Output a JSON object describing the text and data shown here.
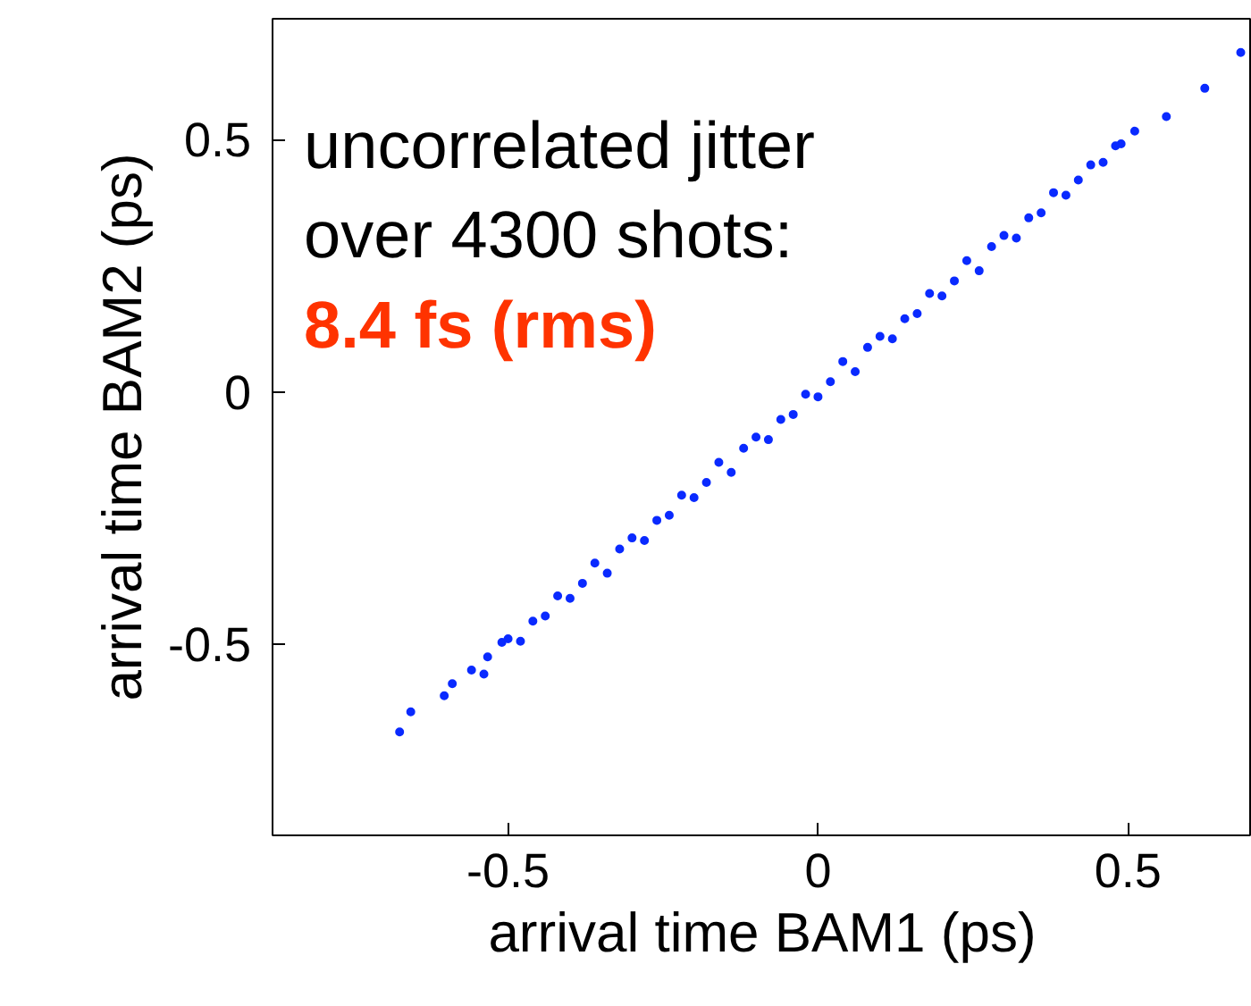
{
  "chart_data": {
    "type": "scatter",
    "xlabel": "arrival time BAM1 (ps)",
    "ylabel": "arrival time BAM2 (ps)",
    "annotations": [
      "uncorrelated jitter",
      "over 4300 shots:",
      "8.4 fs (rms)"
    ],
    "xlim": [
      -0.88,
      0.7
    ],
    "ylim": [
      -0.88,
      0.74
    ],
    "xticks": [
      -0.5,
      0,
      0.5
    ],
    "yticks": [
      -0.5,
      0,
      0.5
    ],
    "grid": false,
    "marker": "circle",
    "series": [
      {
        "color": "#0a2aff",
        "x": [
          -0.675,
          -0.657,
          -0.603,
          -0.59,
          -0.559,
          -0.539,
          -0.533,
          -0.51,
          -0.5,
          -0.48,
          -0.46,
          -0.44,
          -0.42,
          -0.4,
          -0.38,
          -0.36,
          -0.34,
          -0.32,
          -0.3,
          -0.28,
          -0.26,
          -0.24,
          -0.22,
          -0.2,
          -0.18,
          -0.16,
          -0.14,
          -0.12,
          -0.1,
          -0.08,
          -0.06,
          -0.04,
          -0.02,
          0,
          0.02,
          0.04,
          0.06,
          0.08,
          0.1,
          0.12,
          0.14,
          0.16,
          0.18,
          0.2,
          0.22,
          0.24,
          0.26,
          0.28,
          0.3,
          0.32,
          0.34,
          0.36,
          0.38,
          0.4,
          0.42,
          0.44,
          0.46,
          0.48,
          0.489,
          0.511,
          0.562,
          0.624,
          0.682
        ],
        "values": [
          -0.675,
          -0.635,
          -0.603,
          -0.579,
          -0.552,
          -0.56,
          -0.526,
          -0.497,
          -0.49,
          -0.495,
          -0.455,
          -0.445,
          -0.405,
          -0.41,
          -0.38,
          -0.34,
          -0.36,
          -0.312,
          -0.29,
          -0.295,
          -0.255,
          -0.245,
          -0.205,
          -0.21,
          -0.18,
          -0.14,
          -0.16,
          -0.112,
          -0.09,
          -0.095,
          -0.055,
          -0.045,
          -0.005,
          -0.01,
          0.02,
          0.06,
          0.04,
          0.088,
          0.11,
          0.105,
          0.145,
          0.155,
          0.195,
          0.19,
          0.22,
          0.26,
          0.24,
          0.288,
          0.31,
          0.305,
          0.345,
          0.355,
          0.395,
          0.39,
          0.42,
          0.45,
          0.455,
          0.488,
          0.492,
          0.517,
          0.546,
          0.602,
          0.673
        ]
      }
    ]
  }
}
